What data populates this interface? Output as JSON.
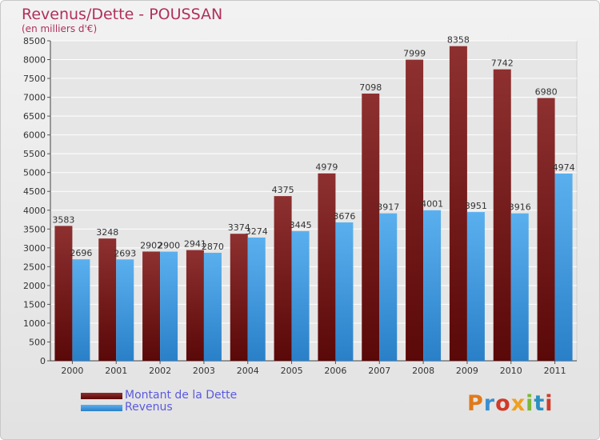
{
  "chart_data": {
    "type": "bar",
    "title": "Revenus/Dette - POUSSAN",
    "subtitle": "(en milliers d'€)",
    "categories": [
      "2000",
      "2001",
      "2002",
      "2003",
      "2004",
      "2005",
      "2006",
      "2007",
      "2008",
      "2009",
      "2010",
      "2011"
    ],
    "series": [
      {
        "name": "Montant de la Dette",
        "color": "#7a1a1a",
        "values": [
          3583,
          3248,
          2902,
          2941,
          3374,
          4375,
          4979,
          7098,
          7999,
          8358,
          7742,
          6980
        ]
      },
      {
        "name": "Revenus",
        "color": "#4aa3e6",
        "values": [
          2696,
          2693,
          2900,
          2870,
          3274,
          3445,
          3676,
          3917,
          4001,
          3951,
          3916,
          4974
        ]
      }
    ],
    "ylim": [
      0,
      8500
    ],
    "ytick_step": 500,
    "yticks": [
      "0",
      "500",
      "1000",
      "1500",
      "2000",
      "2500",
      "3000",
      "3500",
      "4000",
      "4500",
      "5000",
      "5500",
      "6000",
      "6500",
      "7000",
      "7500",
      "8000",
      "8500"
    ],
    "grid": "horizontal",
    "legend_position": "bottom-left"
  },
  "logo_text": "Proxiti",
  "logo_colors": [
    "#e07a1a",
    "#3a8fd0",
    "#d03a2a",
    "#f0a020",
    "#7ab83a",
    "#2a90c0",
    "#d03a2a"
  ]
}
